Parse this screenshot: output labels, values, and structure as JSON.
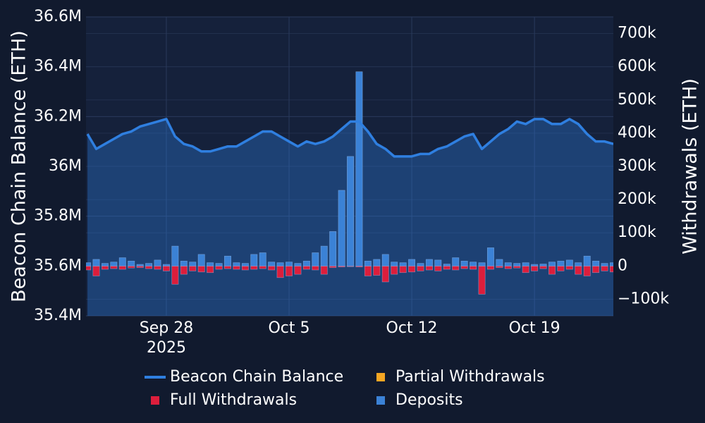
{
  "chart_data": {
    "type": "bar-line",
    "y_axis_label": "Beacon Chain Balance (ETH)",
    "y2_axis_label": "Withdrawals (ETH)",
    "x": [
      "2025-09-23T12:00",
      "2025-09-24T00:00",
      "2025-09-24T12:00",
      "2025-09-25T00:00",
      "2025-09-25T12:00",
      "2025-09-26T00:00",
      "2025-09-26T12:00",
      "2025-09-27T00:00",
      "2025-09-27T12:00",
      "2025-09-28T00:00",
      "2025-09-28T12:00",
      "2025-09-29T00:00",
      "2025-09-29T12:00",
      "2025-09-30T00:00",
      "2025-09-30T12:00",
      "2025-10-01T00:00",
      "2025-10-01T12:00",
      "2025-10-02T00:00",
      "2025-10-02T12:00",
      "2025-10-03T00:00",
      "2025-10-03T12:00",
      "2025-10-04T00:00",
      "2025-10-04T12:00",
      "2025-10-05T00:00",
      "2025-10-05T12:00",
      "2025-10-06T00:00",
      "2025-10-06T12:00",
      "2025-10-07T00:00",
      "2025-10-07T12:00",
      "2025-10-08T00:00",
      "2025-10-08T12:00",
      "2025-10-09T00:00",
      "2025-10-09T12:00",
      "2025-10-10T00:00",
      "2025-10-10T12:00",
      "2025-10-11T00:00",
      "2025-10-11T12:00",
      "2025-10-12T00:00",
      "2025-10-12T12:00",
      "2025-10-13T00:00",
      "2025-10-13T12:00",
      "2025-10-14T00:00",
      "2025-10-14T12:00",
      "2025-10-15T00:00",
      "2025-10-15T12:00",
      "2025-10-16T00:00",
      "2025-10-16T12:00",
      "2025-10-17T00:00",
      "2025-10-17T12:00",
      "2025-10-18T00:00",
      "2025-10-18T12:00",
      "2025-10-19T00:00",
      "2025-10-19T12:00",
      "2025-10-20T00:00",
      "2025-10-20T12:00",
      "2025-10-21T00:00",
      "2025-10-21T12:00",
      "2025-10-22T00:00",
      "2025-10-22T12:00",
      "2025-10-23T00:00",
      "2025-10-23T12:00"
    ],
    "xlim": [
      "2025-09-23T10:00",
      "2025-10-23T12:00"
    ],
    "xticks": [
      {
        "value": "2025-09-28T00:00",
        "label": "Sep 28"
      },
      {
        "value": "2025-10-05T00:00",
        "label": "Oct 5"
      },
      {
        "value": "2025-10-12T00:00",
        "label": "Oct 12"
      },
      {
        "value": "2025-10-19T00:00",
        "label": "Oct 19"
      }
    ],
    "x_tick_year": "2025",
    "ylim": [
      35400000,
      36600000
    ],
    "yticks": [
      {
        "value": 35400000,
        "label": "35.4M"
      },
      {
        "value": 35600000,
        "label": "35.6M"
      },
      {
        "value": 35800000,
        "label": "35.8M"
      },
      {
        "value": 36000000,
        "label": "36M"
      },
      {
        "value": 36200000,
        "label": "36.2M"
      },
      {
        "value": 36400000,
        "label": "36.4M"
      },
      {
        "value": 36600000,
        "label": "36.6M"
      }
    ],
    "y2lim": [
      -150000,
      750000
    ],
    "y2ticks": [
      {
        "value": -100000,
        "label": "−100k"
      },
      0,
      {
        "value": 100000,
        "label": "100k"
      },
      {
        "value": 200000,
        "label": "200k"
      },
      {
        "value": 300000,
        "label": "300k"
      },
      {
        "value": 400000,
        "label": "400k"
      },
      {
        "value": 500000,
        "label": "500k"
      },
      {
        "value": 600000,
        "label": "600k"
      },
      {
        "value": 700000,
        "label": "700k"
      }
    ],
    "grid": true,
    "series": [
      {
        "name": "Beacon Chain Balance",
        "type": "line",
        "color": "#2f7fe0",
        "values": [
          36130000,
          36070000,
          36090000,
          36110000,
          36130000,
          36140000,
          36160000,
          36170000,
          36180000,
          36190000,
          36120000,
          36090000,
          36080000,
          36060000,
          36060000,
          36070000,
          36080000,
          36080000,
          36100000,
          36120000,
          36140000,
          36140000,
          36120000,
          36100000,
          36080000,
          36100000,
          36090000,
          36100000,
          36120000,
          36150000,
          36180000,
          36180000,
          36140000,
          36090000,
          36070000,
          36040000,
          36040000,
          36040000,
          36050000,
          36050000,
          36070000,
          36080000,
          36100000,
          36120000,
          36130000,
          36070000,
          36100000,
          36130000,
          36150000,
          36180000,
          36170000,
          36190000,
          36190000,
          36170000,
          36170000,
          36190000,
          36170000,
          36130000,
          36100000,
          36100000,
          36090000
        ]
      },
      {
        "name": "Partial Withdrawals",
        "type": "bar",
        "axis": "y2",
        "color": "#f5a623",
        "values": [
          0,
          0,
          0,
          0,
          0,
          0,
          0,
          0,
          0,
          0,
          0,
          0,
          0,
          0,
          0,
          0,
          0,
          0,
          0,
          0,
          0,
          0,
          0,
          0,
          0,
          0,
          0,
          0,
          0,
          0,
          0,
          0,
          0,
          0,
          0,
          0,
          0,
          0,
          0,
          0,
          0,
          0,
          0,
          0,
          0,
          0,
          0,
          0,
          0,
          0,
          0,
          0,
          0,
          0,
          0,
          0,
          0,
          0,
          0,
          0,
          0
        ]
      },
      {
        "name": "Full Withdrawals",
        "type": "bar",
        "axis": "y2",
        "color": "#dc1e3c",
        "values": [
          -12000,
          -30000,
          -10000,
          -8000,
          -10000,
          -6000,
          -5000,
          -8000,
          -10000,
          -15000,
          -55000,
          -25000,
          -15000,
          -18000,
          -20000,
          -10000,
          -8000,
          -10000,
          -12000,
          -10000,
          -8000,
          -12000,
          -35000,
          -30000,
          -25000,
          -10000,
          -12000,
          -25000,
          -5000,
          -3000,
          -2000,
          -3000,
          -30000,
          -28000,
          -48000,
          -25000,
          -20000,
          -18000,
          -15000,
          -12000,
          -15000,
          -10000,
          -12000,
          -8000,
          -10000,
          -85000,
          -10000,
          -5000,
          -8000,
          -6000,
          -20000,
          -15000,
          -8000,
          -25000,
          -15000,
          -10000,
          -25000,
          -30000,
          -20000,
          -15000,
          -18000
        ]
      },
      {
        "name": "Deposits",
        "type": "bar",
        "axis": "y2",
        "color": "#3b82d6",
        "values": [
          10000,
          20000,
          8000,
          12000,
          25000,
          15000,
          5000,
          8000,
          18000,
          5000,
          60000,
          15000,
          12000,
          35000,
          10000,
          8000,
          30000,
          10000,
          8000,
          35000,
          40000,
          12000,
          10000,
          12000,
          8000,
          15000,
          40000,
          60000,
          104000,
          228000,
          330000,
          585000,
          15000,
          20000,
          35000,
          12000,
          10000,
          20000,
          8000,
          20000,
          18000,
          6000,
          25000,
          15000,
          12000,
          10000,
          55000,
          20000,
          10000,
          8000,
          10000,
          5000,
          6000,
          12000,
          15000,
          18000,
          10000,
          30000,
          15000,
          8000,
          10000
        ]
      }
    ]
  }
}
